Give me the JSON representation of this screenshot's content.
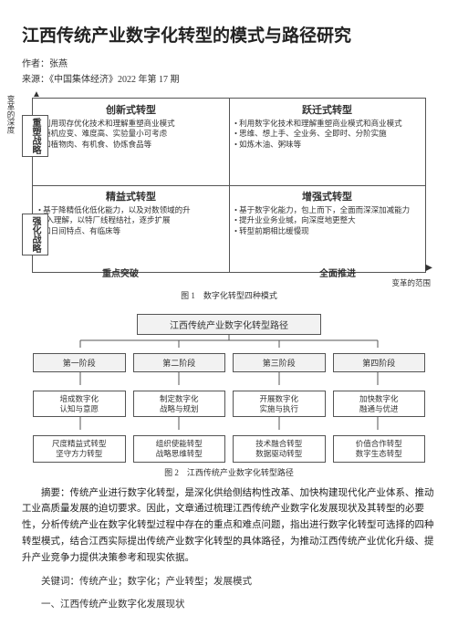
{
  "title": "江西传统产业数字化转型的模式与路径研究",
  "author_label": "作者：",
  "author": "张燕",
  "source_label": "来源：",
  "source": "《中国集体经济》2022 年第 17 期",
  "fig1": {
    "caption": "图 1　数字化转型四种模式",
    "y_axis_tags": {
      "top": "重塑战略",
      "bottom": "强化战略"
    },
    "x_axis_tags": {
      "left": "重点突破",
      "right": "全面推进"
    },
    "x_axis_label": "变革的范围",
    "y_axis_label": "变革的深度",
    "cells": {
      "tl": {
        "title": "创新式转型",
        "body": "• 利用现存优化技术和理解重塑商业模式\n• 随机应变、难度高、实验量小可考虑\n• 如植物肉、有机食、协炼食品等"
      },
      "tr": {
        "title": "跃迁式转型",
        "body": "• 利用数字化技术和理解重塑商业模式和商业模式\n• 思维、想上手、全业务、全即时、分阶实施\n• 如炼木油、粥味等"
      },
      "bl": {
        "title": "精益式转型",
        "body": "• 基于降精低化低化能力，以及对数领域的升\n深入理解，以特厂线程结社，逐步扩展\n• 如日间特点、有临床等"
      },
      "br": {
        "title": "增强式转型",
        "body": "• 基于数字化能力，包上而下，全面而深深加减能力\n• 提升业业务业缄，向深度地更整大\n• 转型前期相比缓慢现"
      }
    }
  },
  "fig2": {
    "caption": "图 2　江西传统产业数字化转型路径",
    "root": "江西传统产业数字化转型路径",
    "phases": [
      "第一阶段",
      "第二阶段",
      "第三阶段",
      "第四阶段"
    ],
    "tasks": [
      "培成数字化\n认知与意愿",
      "制定数字化\n战略与规划",
      "开展数字化\n实施与执行",
      "加快数字化\n融通与优进"
    ],
    "subs": [
      "尺度精益式转型\n坚守方力转型",
      "组织使能转型\n战略思维转型",
      "技术融合转型\n数据驱动转型",
      "价值合作转型\n数字生态转型"
    ]
  },
  "abstract_label": "摘要：",
  "abstract": "传统产业进行数字化转型，是深化供给侧结构性改革、加快构建现代化产业体系、推动工业高质量发展的迫切要求。因此，文章通过梳理江西传统产业数字化发展现状及其转型的必要性，分析传统产业在数字化转型过程中存在的重点和难点问题，指出进行数字化转型可选择的四种转型模式，结合江西实际提出传统产业数字化转型的具体路径，为推动江西传统产业优化升级、提升产业竞争力提供决策参考和现实依据。",
  "keywords_label": "关键词：",
  "keywords": "传统产业；数字化；产业转型；发展模式",
  "section1": "一、江西传统产业数字化发展现状"
}
